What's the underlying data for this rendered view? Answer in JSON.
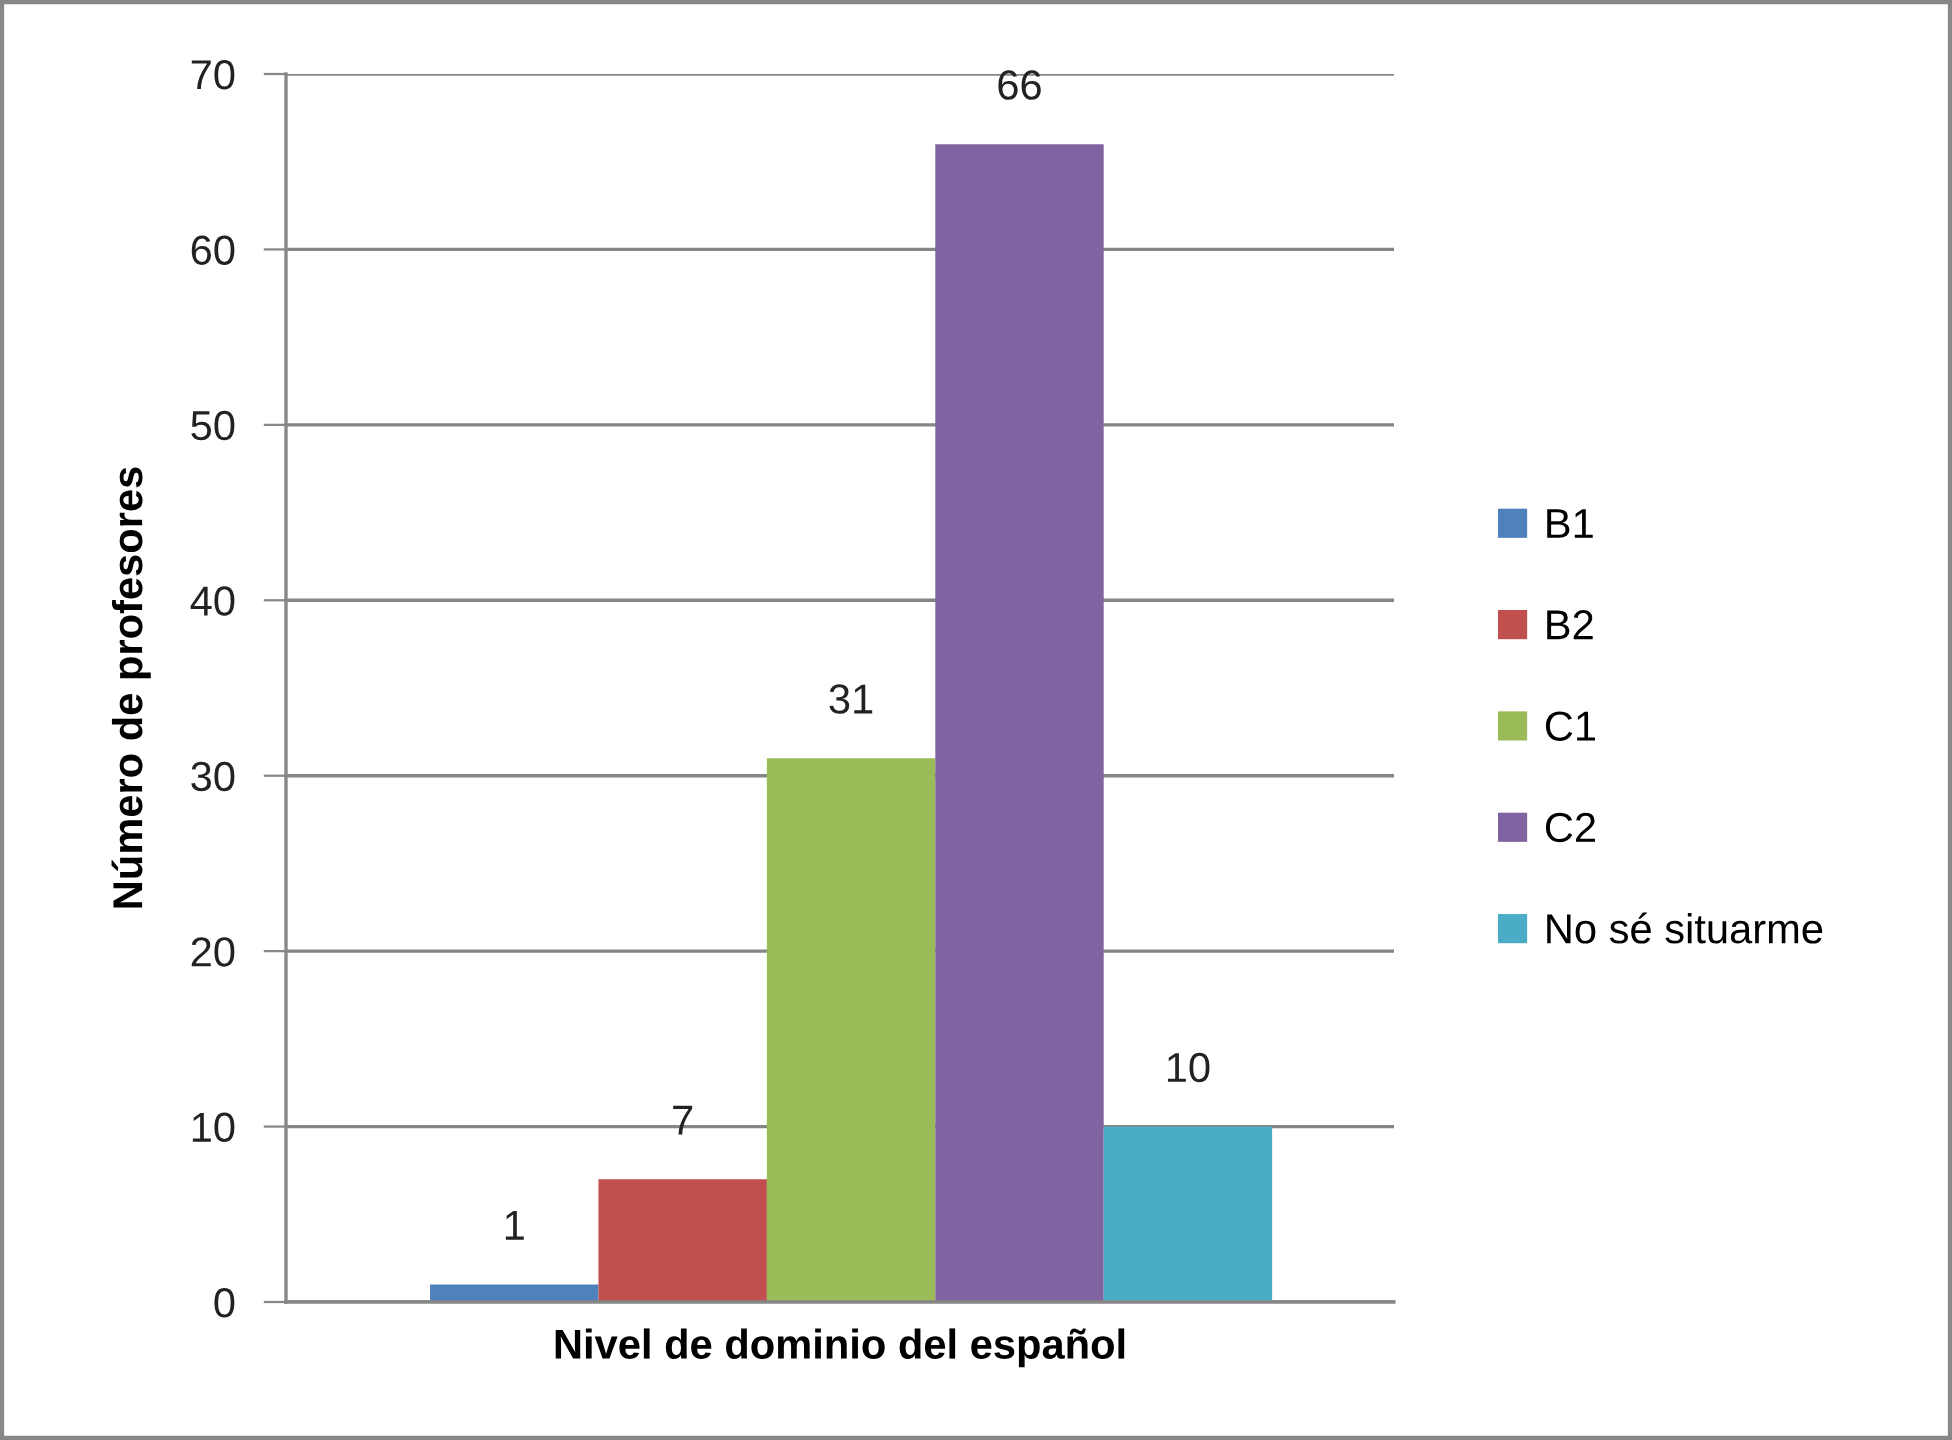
{
  "chart_data": {
    "type": "bar",
    "xlabel": "Nivel de dominio del español",
    "ylabel": "Número de profesores",
    "categories": [
      null
    ],
    "series": [
      {
        "name": "B1",
        "color": "#4f81bd",
        "values": [
          1
        ]
      },
      {
        "name": "B2",
        "color": "#c0504d",
        "values": [
          7
        ]
      },
      {
        "name": "C1",
        "color": "#9bbb59",
        "values": [
          31
        ]
      },
      {
        "name": "C2",
        "color": "#8064a2",
        "values": [
          66
        ]
      },
      {
        "name": "No sé situarme",
        "color": "#4bacc6",
        "values": [
          10
        ]
      }
    ],
    "ylim": [
      0,
      70
    ],
    "yticks": [
      0,
      10,
      20,
      30,
      40,
      50,
      60,
      70
    ],
    "grid": "y",
    "legend": "right",
    "data_labels": true
  }
}
